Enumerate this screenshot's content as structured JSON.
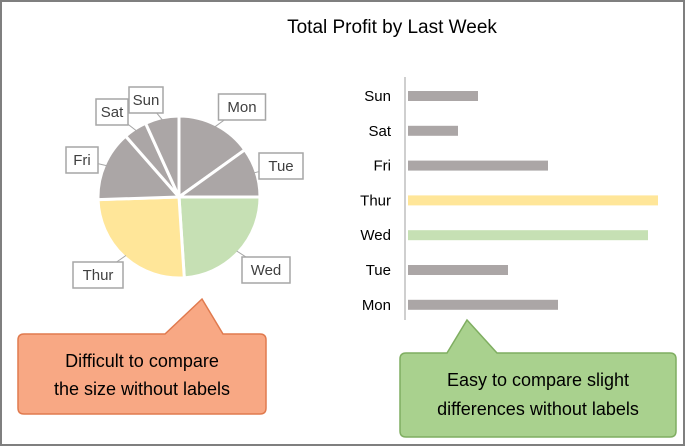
{
  "title": "Total Profit by Last Week",
  "colors": {
    "gray": "#aba6a6",
    "wed": "#c6e0b4",
    "thur": "#ffe699",
    "callout_left_fill": "#f8a884",
    "callout_left_stroke": "#e07a4e",
    "callout_right_fill": "#a9d18e",
    "callout_right_stroke": "#7fae61",
    "axis": "#bfbfbf"
  },
  "chart_data": [
    {
      "type": "pie",
      "categories": [
        "Mon",
        "Tue",
        "Wed",
        "Thur",
        "Fri",
        "Sat",
        "Sun"
      ],
      "values": [
        14.5,
        9.5,
        23,
        24.5,
        13.5,
        4.5,
        6.5
      ],
      "start": "top, clockwise",
      "labels_shown": true
    },
    {
      "type": "bar",
      "orientation": "horizontal",
      "categories": [
        "Sun",
        "Sat",
        "Fri",
        "Thur",
        "Wed",
        "Tue",
        "Mon"
      ],
      "values": [
        7,
        5,
        14,
        25,
        24,
        10,
        15
      ],
      "xlim": [
        0,
        25
      ],
      "axis_labels_numeric": false,
      "grid": false
    }
  ],
  "callouts": {
    "left": {
      "line1": "Difficult to compare",
      "line2": "the size without labels"
    },
    "right": {
      "line1": "Easy to compare slight",
      "line2": "differences without labels"
    }
  }
}
